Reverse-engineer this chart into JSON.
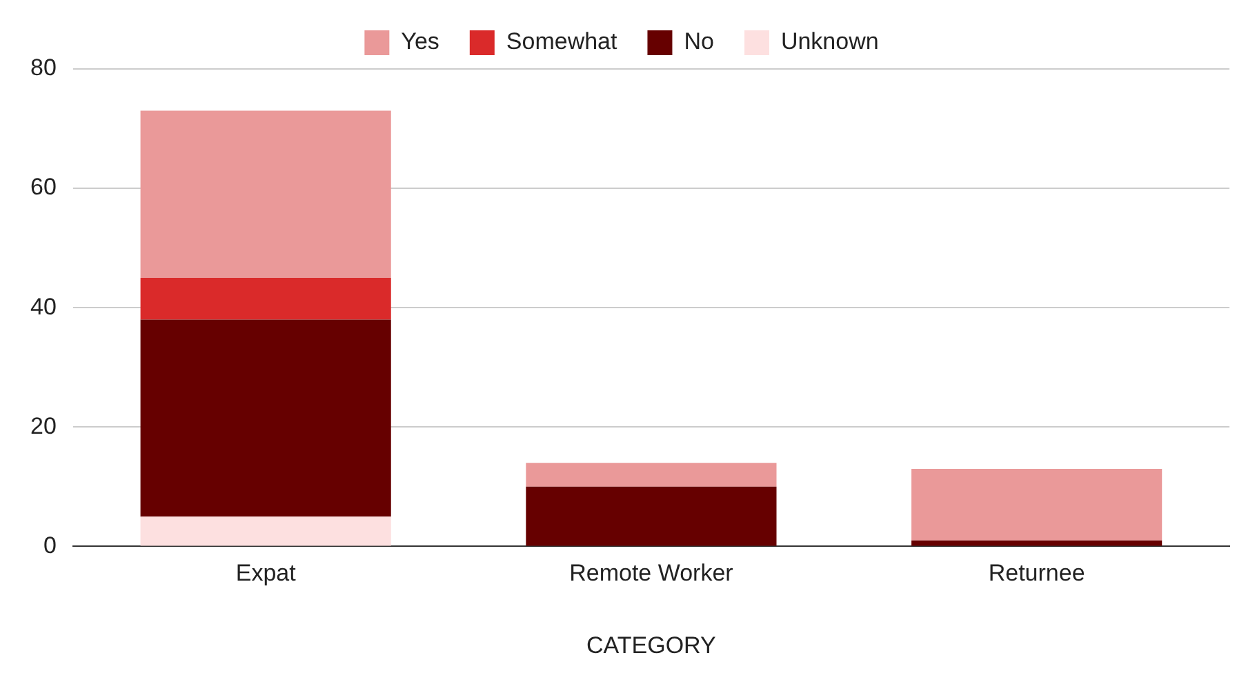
{
  "chart_data": {
    "type": "bar",
    "stacked": true,
    "xlabel": "CATEGORY",
    "categories": [
      "Expat",
      "Remote Worker",
      "Returnee"
    ],
    "series": [
      {
        "name": "Unknown",
        "color": "#fde0e0",
        "values": [
          5,
          0,
          0
        ]
      },
      {
        "name": "No",
        "color": "#660000",
        "values": [
          33,
          10,
          1
        ]
      },
      {
        "name": "Somewhat",
        "color": "#da2a2a",
        "values": [
          7,
          0,
          0
        ]
      },
      {
        "name": "Yes",
        "color": "#ea9999",
        "values": [
          28,
          4,
          12
        ]
      }
    ],
    "ylim": [
      0,
      80
    ],
    "yticks": [
      0,
      20,
      40,
      60,
      80
    ],
    "grid": "y",
    "legend": "top"
  }
}
